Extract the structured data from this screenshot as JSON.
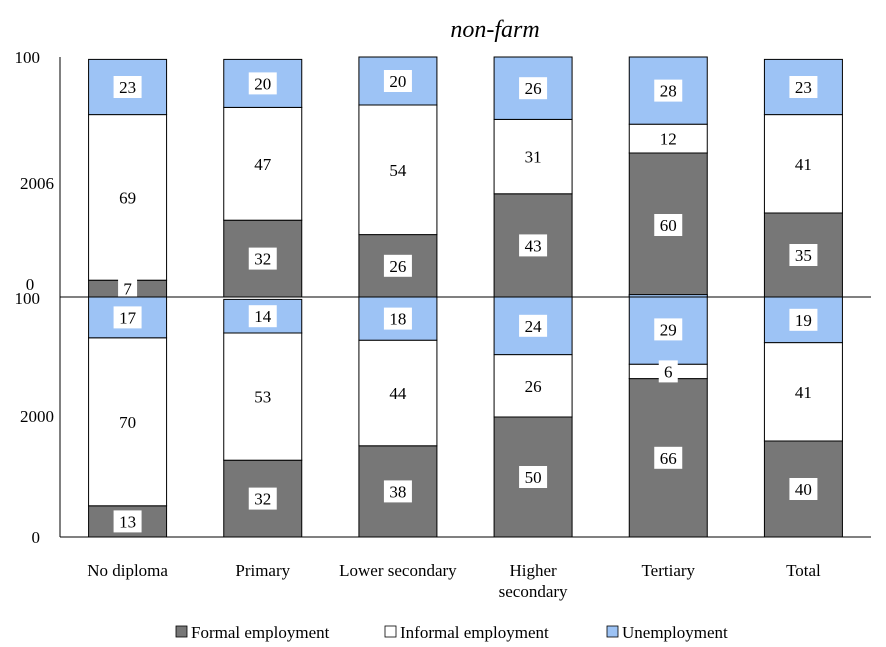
{
  "chart_data": {
    "type": "bar",
    "stacked": true,
    "title": "non-farm",
    "categories": [
      "No diploma",
      "Primary",
      "Lower secondary",
      "Higher secondary",
      "Tertiary",
      "Total"
    ],
    "panels": [
      {
        "name": "2006",
        "ylim": [
          0,
          100
        ],
        "series": [
          {
            "name": "Formal employment",
            "values": [
              7,
              32,
              26,
              43,
              60,
              35
            ]
          },
          {
            "name": "Informal employment",
            "values": [
              69,
              47,
              54,
              31,
              12,
              41
            ]
          },
          {
            "name": "Unemployment",
            "values": [
              23,
              20,
              20,
              26,
              28,
              23
            ]
          }
        ]
      },
      {
        "name": "2000",
        "ylim": [
          0,
          100
        ],
        "series": [
          {
            "name": "Formal employment",
            "values": [
              13,
              32,
              38,
              50,
              66,
              40
            ]
          },
          {
            "name": "Informal employment",
            "values": [
              70,
              53,
              44,
              26,
              6,
              41
            ]
          },
          {
            "name": "Unemployment",
            "values": [
              17,
              14,
              18,
              24,
              29,
              19
            ]
          }
        ]
      }
    ],
    "colors": {
      "Formal employment": "#777777",
      "Informal employment": "#ffffff",
      "Unemployment": "#9dc3f5"
    },
    "legend_position": "bottom",
    "grid": false
  },
  "axis": {
    "top_panel_ticks": {
      "top": "100",
      "middle": "2006",
      "bottom": "0"
    },
    "bottom_panel_ticks": {
      "top": "100",
      "middle": "2000",
      "bottom": "0"
    }
  },
  "legend": {
    "items": [
      {
        "label": "Formal employment",
        "color": "#777777"
      },
      {
        "label": "Informal employment",
        "color": "#ffffff"
      },
      {
        "label": "Unemployment",
        "color": "#9dc3f5"
      }
    ]
  }
}
